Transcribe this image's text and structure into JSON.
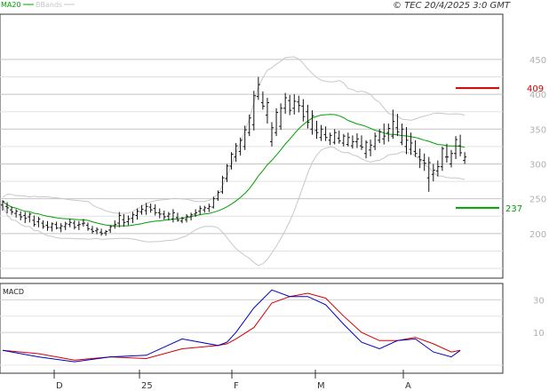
{
  "header": {
    "legend": [
      {
        "label": "MA20",
        "color": "#00a000"
      },
      {
        "label": "BBands",
        "color": "#c8c8c8"
      }
    ],
    "copyright": "© TEC 20/4/2025 3:0 GMT"
  },
  "chart_data": [
    {
      "type": "candlestick",
      "title": "",
      "y_ticks": [
        "450",
        "400",
        "350",
        "300",
        "250",
        "200"
      ],
      "ylim": [
        136,
        515
      ],
      "grid": true,
      "x_tick_labels": [
        "D",
        "25",
        "F",
        "M",
        "A"
      ],
      "levels": [
        {
          "label": "409",
          "value": 409,
          "color": "#cc0000"
        },
        {
          "label": "237",
          "value": 237,
          "color": "#00a000"
        }
      ],
      "series": [
        {
          "name": "MA20",
          "color": "#00a000"
        },
        {
          "name": "BBands",
          "color": "#c8c8c8"
        }
      ],
      "bars": [
        [
          241,
          248,
          233,
          246
        ],
        [
          239,
          245,
          229,
          237
        ],
        [
          234,
          239,
          227,
          231
        ],
        [
          229,
          235,
          223,
          232
        ],
        [
          227,
          232,
          219,
          224
        ],
        [
          226,
          231,
          215,
          222
        ],
        [
          224,
          230,
          216,
          228
        ],
        [
          219,
          226,
          210,
          213
        ],
        [
          217,
          224,
          209,
          221
        ],
        [
          215,
          219,
          207,
          210
        ],
        [
          212,
          218,
          204,
          209
        ],
        [
          209,
          216,
          203,
          214
        ],
        [
          213,
          217,
          206,
          208
        ],
        [
          208,
          215,
          202,
          211
        ],
        [
          210,
          217,
          205,
          214
        ],
        [
          213,
          221,
          209,
          216
        ],
        [
          215,
          219,
          206,
          209
        ],
        [
          212,
          218,
          205,
          213
        ],
        [
          214,
          221,
          210,
          215
        ],
        [
          212,
          216,
          204,
          207
        ],
        [
          206,
          211,
          200,
          203
        ],
        [
          204,
          209,
          199,
          206
        ],
        [
          202,
          207,
          197,
          200
        ],
        [
          201,
          205,
          197,
          203
        ],
        [
          205,
          212,
          201,
          210
        ],
        [
          211,
          219,
          207,
          213
        ],
        [
          215,
          231,
          209,
          226
        ],
        [
          220,
          228,
          210,
          216
        ],
        [
          217,
          226,
          212,
          221
        ],
        [
          222,
          231,
          215,
          227
        ],
        [
          226,
          236,
          220,
          232
        ],
        [
          231,
          241,
          227,
          235
        ],
        [
          233,
          244,
          227,
          239
        ],
        [
          238,
          243,
          230,
          234
        ],
        [
          236,
          242,
          226,
          230
        ],
        [
          230,
          236,
          222,
          228
        ],
        [
          228,
          233,
          220,
          224
        ],
        [
          225,
          231,
          219,
          228
        ],
        [
          221,
          235,
          216,
          230
        ],
        [
          223,
          230,
          217,
          219
        ],
        [
          218,
          224,
          215,
          222
        ],
        [
          220,
          228,
          216,
          225
        ],
        [
          224,
          230,
          219,
          227
        ],
        [
          228,
          235,
          224,
          230
        ],
        [
          232,
          240,
          227,
          236
        ],
        [
          234,
          240,
          230,
          237
        ],
        [
          236,
          243,
          231,
          239
        ],
        [
          238,
          253,
          236,
          250
        ],
        [
          250,
          262,
          247,
          259
        ],
        [
          260,
          283,
          257,
          280
        ],
        [
          279,
          300,
          274,
          297
        ],
        [
          297,
          317,
          292,
          314
        ],
        [
          310,
          330,
          303,
          326
        ],
        [
          318,
          338,
          312,
          334
        ],
        [
          325,
          355,
          320,
          349
        ],
        [
          345,
          371,
          340,
          366
        ],
        [
          356,
          405,
          348,
          398
        ],
        [
          397,
          425,
          392,
          414
        ],
        [
          388,
          404,
          378,
          383
        ],
        [
          370,
          395,
          358,
          388
        ],
        [
          332,
          360,
          325,
          352
        ],
        [
          345,
          380,
          340,
          374
        ],
        [
          354,
          387,
          349,
          380
        ],
        [
          380,
          402,
          372,
          395
        ],
        [
          391,
          399,
          370,
          377
        ],
        [
          380,
          400,
          371,
          390
        ],
        [
          389,
          398,
          374,
          384
        ],
        [
          383,
          393,
          361,
          368
        ],
        [
          375,
          385,
          351,
          360
        ],
        [
          350,
          377,
          342,
          369
        ],
        [
          348,
          362,
          336,
          345
        ],
        [
          338,
          356,
          333,
          350
        ],
        [
          342,
          354,
          333,
          338
        ],
        [
          334,
          345,
          327,
          341
        ],
        [
          331,
          350,
          328,
          345
        ],
        [
          337,
          348,
          329,
          333
        ],
        [
          330,
          343,
          325,
          340
        ],
        [
          328,
          345,
          325,
          338
        ],
        [
          326,
          341,
          322,
          332
        ],
        [
          332,
          344,
          323,
          336
        ],
        [
          326,
          341,
          320,
          324
        ],
        [
          315,
          334,
          308,
          331
        ],
        [
          320,
          335,
          311,
          327
        ],
        [
          325,
          345,
          320,
          340
        ],
        [
          334,
          350,
          330,
          346
        ],
        [
          336,
          358,
          328,
          340
        ],
        [
          345,
          358,
          332,
          351
        ],
        [
          340,
          378,
          336,
          361
        ],
        [
          352,
          372,
          340,
          346
        ],
        [
          331,
          358,
          327,
          350
        ],
        [
          325,
          353,
          314,
          334
        ],
        [
          321,
          345,
          313,
          330
        ],
        [
          318,
          334,
          310,
          315
        ],
        [
          310,
          322,
          294,
          306
        ],
        [
          305,
          315,
          290,
          301
        ],
        [
          280,
          310,
          260,
          302
        ],
        [
          285,
          300,
          275,
          291
        ],
        [
          290,
          305,
          282,
          296
        ],
        [
          296,
          325,
          290,
          322
        ],
        [
          310,
          329,
          302,
          310
        ],
        [
          300,
          320,
          295,
          315
        ],
        [
          315,
          340,
          307,
          335
        ],
        [
          326,
          342,
          311,
          316
        ],
        [
          305,
          317,
          300,
          310
        ]
      ]
    },
    {
      "type": "line",
      "title": "MACD",
      "y_ticks": [
        "30",
        "10"
      ],
      "ylim": [
        -15,
        40
      ],
      "series": [
        {
          "name": "MACD",
          "color": "#0000c0"
        },
        {
          "name": "Signal",
          "color": "#d00000"
        }
      ],
      "x": [
        0,
        8,
        16,
        24,
        32,
        40,
        48,
        50,
        52,
        56,
        60,
        64,
        68,
        72,
        76,
        80,
        84,
        88,
        92,
        96,
        100,
        102
      ],
      "macd": [
        -1,
        -5,
        -8,
        -5,
        -4,
        6,
        2,
        4,
        10,
        25,
        36,
        32,
        32,
        27,
        15,
        4,
        0,
        5,
        6,
        -2,
        -5,
        -1
      ],
      "signal": [
        -1,
        -3,
        -7,
        -5,
        -6,
        0,
        2,
        3,
        6,
        13,
        28,
        32,
        34,
        31,
        20,
        10,
        5,
        5,
        7,
        3,
        -2,
        -1
      ]
    }
  ]
}
